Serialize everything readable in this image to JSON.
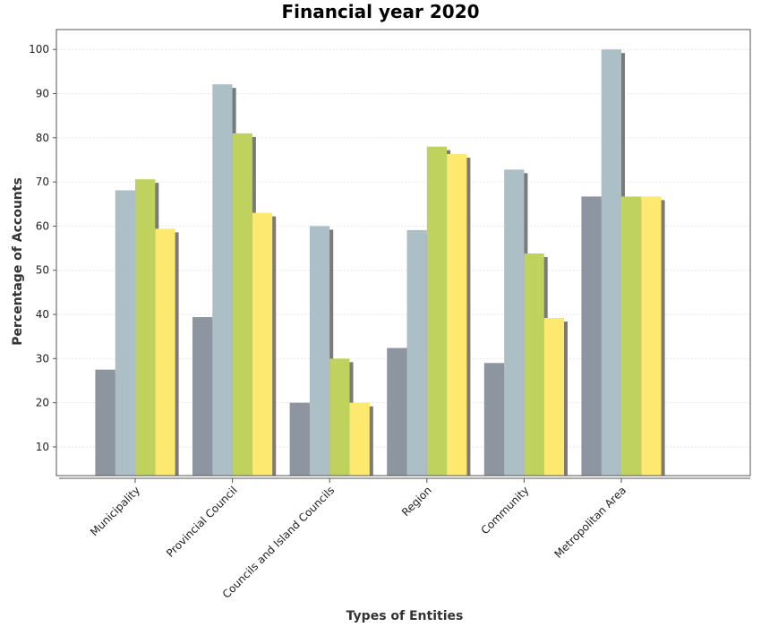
{
  "chart_data": {
    "type": "bar",
    "title": "Financial year 2020",
    "xlabel": "Types of Entities",
    "ylabel": "Percentage of Accounts",
    "categories": [
      "Municipality",
      "Provincial Council",
      "Councils and Island Councils",
      "Region",
      "Community",
      "Metropolitan Area"
    ],
    "series": [
      {
        "color": "#8d96a0",
        "values": [
          27.5,
          39.4,
          20.0,
          32.4,
          29.0,
          66.7
        ]
      },
      {
        "color": "#adbfc6",
        "values": [
          68.1,
          92.1,
          60.0,
          59.1,
          72.8,
          100.0
        ]
      },
      {
        "color": "#c0d25e",
        "values": [
          70.6,
          81.0,
          30.0,
          78.0,
          53.8,
          66.7
        ]
      },
      {
        "color": "#fde870",
        "values": [
          59.4,
          63.0,
          20.0,
          76.3,
          39.2,
          66.7
        ]
      }
    ],
    "yticks": [
      10,
      20,
      30,
      40,
      50,
      60,
      70,
      80,
      90,
      100
    ],
    "ylim": [
      3.5,
      104.5
    ],
    "grid": true,
    "shadow_color": "#7a7a7a"
  }
}
